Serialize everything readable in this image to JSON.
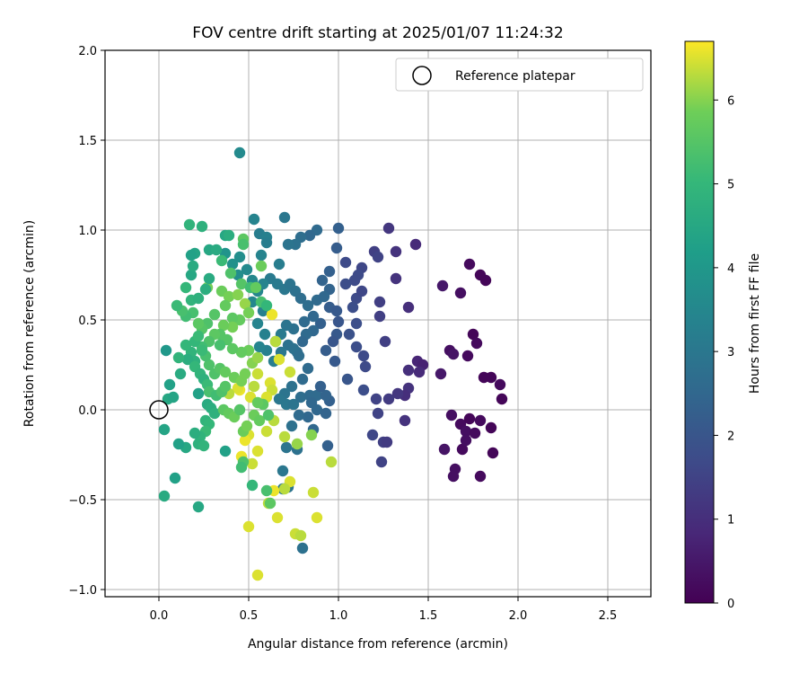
{
  "chart_data": {
    "type": "scatter",
    "title": "FOV centre drift starting at 2025/01/07 11:24:32",
    "xlabel": "Angular distance from reference (arcmin)",
    "ylabel": "Rotation from reference (arcmin)",
    "xlim": [
      -0.3,
      2.74
    ],
    "ylim": [
      -1.04,
      2.0
    ],
    "xticks": [
      0.0,
      0.5,
      1.0,
      1.5,
      2.0,
      2.5
    ],
    "xtick_labels": [
      "0.0",
      "0.5",
      "1.0",
      "1.5",
      "2.0",
      "2.5"
    ],
    "yticks": [
      -1.0,
      -0.5,
      0.0,
      0.5,
      1.0,
      1.5,
      2.0
    ],
    "ytick_labels": [
      "−1.0",
      "−0.5",
      "0.0",
      "0.5",
      "1.0",
      "1.5",
      "2.0"
    ],
    "grid": true,
    "legend": {
      "position": "top-right",
      "entries": [
        "Reference platepar"
      ]
    },
    "reference_point": {
      "x": 0.0,
      "y": 0.0
    },
    "colorbar": {
      "label": "Hours from first FF file",
      "min": 0,
      "max": 6.7,
      "ticks": [
        0,
        1,
        2,
        3,
        4,
        5,
        6
      ],
      "tick_labels": [
        "0",
        "1",
        "2",
        "3",
        "4",
        "5",
        "6"
      ],
      "colormap": "viridis"
    },
    "points": [
      [
        1.82,
        0.72,
        0.1
      ],
      [
        1.79,
        0.75,
        0.1
      ],
      [
        1.73,
        0.81,
        0.2
      ],
      [
        1.68,
        0.65,
        0.3
      ],
      [
        1.58,
        0.69,
        0.5
      ],
      [
        1.75,
        0.42,
        0.1
      ],
      [
        1.77,
        0.37,
        0.2
      ],
      [
        1.72,
        0.3,
        0.2
      ],
      [
        1.62,
        0.33,
        0.3
      ],
      [
        1.64,
        0.31,
        0.4
      ],
      [
        1.81,
        0.18,
        0.1
      ],
      [
        1.85,
        0.18,
        0.1
      ],
      [
        1.9,
        0.14,
        0.2
      ],
      [
        1.91,
        0.06,
        0.1
      ],
      [
        1.57,
        0.2,
        0.5
      ],
      [
        1.63,
        -0.03,
        0.3
      ],
      [
        1.68,
        -0.08,
        0.2
      ],
      [
        1.71,
        -0.12,
        0.3
      ],
      [
        1.73,
        -0.05,
        0.1
      ],
      [
        1.76,
        -0.13,
        0.2
      ],
      [
        1.79,
        -0.06,
        0.2
      ],
      [
        1.85,
        -0.1,
        0.1
      ],
      [
        1.86,
        -0.24,
        0.1
      ],
      [
        1.69,
        -0.22,
        0.2
      ],
      [
        1.59,
        -0.22,
        0.4
      ],
      [
        1.71,
        -0.17,
        0.3
      ],
      [
        1.65,
        -0.33,
        0.3
      ],
      [
        1.64,
        -0.37,
        0.3
      ],
      [
        1.79,
        -0.37,
        0.2
      ],
      [
        1.44,
        0.27,
        0.8
      ],
      [
        1.47,
        0.25,
        0.7
      ],
      [
        1.45,
        0.21,
        0.9
      ],
      [
        1.39,
        0.22,
        1.0
      ],
      [
        1.39,
        0.12,
        1.1
      ],
      [
        1.37,
        0.08,
        1.0
      ],
      [
        1.33,
        0.09,
        1.2
      ],
      [
        1.28,
        0.06,
        1.3
      ],
      [
        1.37,
        -0.06,
        1.1
      ],
      [
        1.43,
        0.92,
        0.9
      ],
      [
        1.28,
        1.01,
        1.2
      ],
      [
        1.32,
        0.88,
        1.1
      ],
      [
        1.32,
        0.73,
        1.1
      ],
      [
        1.39,
        0.57,
        1.0
      ],
      [
        1.23,
        0.6,
        1.4
      ],
      [
        1.23,
        0.52,
        1.4
      ],
      [
        1.26,
        0.38,
        1.4
      ],
      [
        1.2,
        0.88,
        1.4
      ],
      [
        1.22,
        0.85,
        1.5
      ],
      [
        1.13,
        0.79,
        1.6
      ],
      [
        1.11,
        0.75,
        1.7
      ],
      [
        1.09,
        0.72,
        1.7
      ],
      [
        1.04,
        0.7,
        1.8
      ],
      [
        1.04,
        0.82,
        1.7
      ],
      [
        1.1,
        0.62,
        1.7
      ],
      [
        1.13,
        0.66,
        1.6
      ],
      [
        1.08,
        0.57,
        1.8
      ],
      [
        1.1,
        0.48,
        1.8
      ],
      [
        1.06,
        0.42,
        1.9
      ],
      [
        1.1,
        0.35,
        1.8
      ],
      [
        1.14,
        0.3,
        1.7
      ],
      [
        1.15,
        0.24,
        1.7
      ],
      [
        1.14,
        0.11,
        1.8
      ],
      [
        1.05,
        0.17,
        2.0
      ],
      [
        1.21,
        0.06,
        1.5
      ],
      [
        1.22,
        -0.02,
        1.5
      ],
      [
        1.25,
        -0.18,
        1.4
      ],
      [
        1.27,
        -0.18,
        1.3
      ],
      [
        1.19,
        -0.14,
        1.6
      ],
      [
        1.24,
        -0.29,
        1.5
      ],
      [
        1.0,
        1.01,
        2.3
      ],
      [
        0.99,
        0.9,
        2.2
      ],
      [
        0.95,
        0.77,
        2.3
      ],
      [
        0.91,
        0.72,
        2.4
      ],
      [
        0.95,
        0.67,
        2.4
      ],
      [
        0.95,
        0.57,
        2.2
      ],
      [
        0.99,
        0.55,
        2.1
      ],
      [
        1.0,
        0.49,
        2.0
      ],
      [
        0.99,
        0.42,
        2.1
      ],
      [
        0.97,
        0.38,
        2.0
      ],
      [
        0.93,
        0.33,
        2.2
      ],
      [
        0.98,
        0.27,
        2.1
      ],
      [
        0.9,
        0.48,
        2.3
      ],
      [
        0.86,
        0.44,
        2.5
      ],
      [
        0.82,
        0.42,
        2.6
      ],
      [
        0.8,
        0.38,
        2.5
      ],
      [
        0.77,
        0.32,
        2.7
      ],
      [
        0.88,
        1.0,
        2.6
      ],
      [
        0.84,
        0.97,
        2.5
      ],
      [
        0.79,
        0.96,
        2.7
      ],
      [
        0.76,
        0.92,
        2.8
      ],
      [
        0.72,
        0.92,
        2.9
      ],
      [
        0.7,
        1.07,
        3.0
      ],
      [
        0.56,
        0.98,
        3.2
      ],
      [
        0.53,
        1.06,
        3.4
      ],
      [
        0.6,
        0.96,
        3.3
      ],
      [
        0.6,
        0.93,
        3.2
      ],
      [
        0.45,
        1.43,
        3.6
      ],
      [
        0.57,
        0.86,
        3.4
      ],
      [
        0.67,
        0.81,
        3.2
      ],
      [
        0.62,
        0.73,
        3.1
      ],
      [
        0.66,
        0.7,
        3.1
      ],
      [
        0.7,
        0.67,
        3.0
      ],
      [
        0.73,
        0.7,
        2.9
      ],
      [
        0.76,
        0.66,
        2.8
      ],
      [
        0.79,
        0.62,
        2.7
      ],
      [
        0.83,
        0.58,
        2.7
      ],
      [
        0.88,
        0.61,
        2.6
      ],
      [
        0.92,
        0.63,
        2.5
      ],
      [
        0.86,
        0.52,
        2.5
      ],
      [
        0.81,
        0.49,
        2.6
      ],
      [
        0.75,
        0.45,
        2.8
      ],
      [
        0.71,
        0.47,
        2.9
      ],
      [
        0.68,
        0.42,
        3.1
      ],
      [
        0.65,
        0.38,
        3.0
      ],
      [
        0.72,
        0.36,
        2.8
      ],
      [
        0.75,
        0.34,
        2.8
      ],
      [
        0.78,
        0.3,
        2.7
      ],
      [
        0.68,
        0.32,
        3.0
      ],
      [
        0.64,
        0.27,
        3.2
      ],
      [
        0.6,
        0.33,
        3.3
      ],
      [
        0.56,
        0.35,
        3.4
      ],
      [
        0.59,
        0.42,
        3.3
      ],
      [
        0.55,
        0.48,
        3.4
      ],
      [
        0.58,
        0.55,
        3.3
      ],
      [
        0.52,
        0.6,
        3.5
      ],
      [
        0.55,
        0.66,
        3.5
      ],
      [
        0.58,
        0.7,
        3.4
      ],
      [
        0.52,
        0.72,
        3.5
      ],
      [
        0.49,
        0.78,
        3.6
      ],
      [
        0.44,
        0.75,
        3.7
      ],
      [
        0.41,
        0.81,
        3.8
      ],
      [
        0.37,
        0.87,
        3.9
      ],
      [
        0.45,
        0.85,
        3.7
      ],
      [
        0.83,
        0.23,
        2.6
      ],
      [
        0.8,
        0.17,
        2.6
      ],
      [
        0.74,
        0.13,
        2.8
      ],
      [
        0.7,
        0.09,
        2.9
      ],
      [
        0.67,
        0.06,
        3.0
      ],
      [
        0.71,
        0.03,
        3.0
      ],
      [
        0.75,
        0.03,
        2.9
      ],
      [
        0.79,
        0.07,
        2.7
      ],
      [
        0.84,
        0.08,
        2.6
      ],
      [
        0.88,
        0.08,
        2.6
      ],
      [
        0.85,
        0.04,
        2.5
      ],
      [
        0.88,
        0.0,
        2.5
      ],
      [
        0.83,
        -0.04,
        2.5
      ],
      [
        0.78,
        -0.03,
        2.6
      ],
      [
        0.74,
        -0.09,
        2.8
      ],
      [
        0.71,
        -0.21,
        2.9
      ],
      [
        0.77,
        -0.22,
        2.8
      ],
      [
        0.86,
        -0.11,
        2.5
      ],
      [
        0.93,
        -0.02,
        2.4
      ],
      [
        0.95,
        0.05,
        2.3
      ],
      [
        0.93,
        0.08,
        2.4
      ],
      [
        0.9,
        0.13,
        2.3
      ],
      [
        0.69,
        -0.34,
        3.0
      ],
      [
        0.69,
        -0.44,
        3.0
      ],
      [
        0.72,
        -0.43,
        2.9
      ],
      [
        0.8,
        -0.77,
        2.8
      ],
      [
        0.94,
        -0.2,
        2.3
      ],
      [
        0.73,
        0.21,
        6.4
      ],
      [
        0.67,
        0.28,
        6.5
      ],
      [
        0.65,
        0.38,
        6.3
      ],
      [
        0.63,
        0.53,
        6.6
      ],
      [
        0.62,
        0.15,
        6.5
      ],
      [
        0.63,
        0.11,
        6.4
      ],
      [
        0.6,
        0.07,
        6.5
      ],
      [
        0.55,
        0.2,
        6.4
      ],
      [
        0.53,
        0.13,
        6.3
      ],
      [
        0.51,
        0.07,
        6.5
      ],
      [
        0.45,
        0.11,
        6.6
      ],
      [
        0.44,
        0.12,
        6.5
      ],
      [
        0.39,
        0.09,
        6.3
      ],
      [
        0.5,
        -0.14,
        6.5
      ],
      [
        0.55,
        -0.23,
        6.5
      ],
      [
        0.48,
        -0.17,
        6.6
      ],
      [
        0.52,
        -0.3,
        6.4
      ],
      [
        0.46,
        -0.26,
        6.6
      ],
      [
        0.6,
        -0.12,
        6.4
      ],
      [
        0.64,
        -0.06,
        6.3
      ],
      [
        0.7,
        -0.15,
        6.3
      ],
      [
        0.77,
        -0.19,
        6.1
      ],
      [
        0.85,
        -0.14,
        6.0
      ],
      [
        0.73,
        -0.4,
        6.5
      ],
      [
        0.64,
        -0.45,
        6.6
      ],
      [
        0.66,
        -0.6,
        6.5
      ],
      [
        0.61,
        -0.52,
        6.3
      ],
      [
        0.86,
        -0.46,
        6.4
      ],
      [
        0.88,
        -0.6,
        6.5
      ],
      [
        0.76,
        -0.69,
        6.4
      ],
      [
        0.79,
        -0.7,
        6.3
      ],
      [
        0.5,
        -0.65,
        6.5
      ],
      [
        0.55,
        -0.92,
        6.5
      ],
      [
        0.96,
        -0.29,
        6.3
      ],
      [
        0.7,
        -0.44,
        6.3
      ],
      [
        0.27,
        0.68,
        5.9
      ],
      [
        0.35,
        0.66,
        5.8
      ],
      [
        0.39,
        0.63,
        5.9
      ],
      [
        0.37,
        0.58,
        5.7
      ],
      [
        0.31,
        0.53,
        5.5
      ],
      [
        0.27,
        0.48,
        5.4
      ],
      [
        0.24,
        0.45,
        5.5
      ],
      [
        0.22,
        0.48,
        5.6
      ],
      [
        0.19,
        0.54,
        5.3
      ],
      [
        0.15,
        0.52,
        5.2
      ],
      [
        0.13,
        0.55,
        5.3
      ],
      [
        0.1,
        0.58,
        5.1
      ],
      [
        0.15,
        0.68,
        5.0
      ],
      [
        0.18,
        0.61,
        4.9
      ],
      [
        0.22,
        0.62,
        4.8
      ],
      [
        0.26,
        0.67,
        4.7
      ],
      [
        0.28,
        0.73,
        4.6
      ],
      [
        0.18,
        0.75,
        4.5
      ],
      [
        0.19,
        0.8,
        4.6
      ],
      [
        0.2,
        0.87,
        4.4
      ],
      [
        0.18,
        0.86,
        4.3
      ],
      [
        0.17,
        1.03,
        4.9
      ],
      [
        0.24,
        1.02,
        4.8
      ],
      [
        0.28,
        0.89,
        4.5
      ],
      [
        0.32,
        0.89,
        4.6
      ],
      [
        0.37,
        0.97,
        4.5
      ],
      [
        0.39,
        0.97,
        4.7
      ],
      [
        0.47,
        0.95,
        5.6
      ],
      [
        0.47,
        0.92,
        5.3
      ],
      [
        0.35,
        0.83,
        5.1
      ],
      [
        0.4,
        0.76,
        5.4
      ],
      [
        0.46,
        0.7,
        5.5
      ],
      [
        0.51,
        0.68,
        5.2
      ],
      [
        0.54,
        0.68,
        5.7
      ],
      [
        0.57,
        0.8,
        5.8
      ],
      [
        0.44,
        0.64,
        6.0
      ],
      [
        0.48,
        0.59,
        6.1
      ],
      [
        0.5,
        0.54,
        5.9
      ],
      [
        0.45,
        0.5,
        5.7
      ],
      [
        0.41,
        0.51,
        5.6
      ],
      [
        0.41,
        0.46,
        5.9
      ],
      [
        0.36,
        0.47,
        5.8
      ],
      [
        0.34,
        0.42,
        5.5
      ],
      [
        0.31,
        0.42,
        5.6
      ],
      [
        0.28,
        0.38,
        5.4
      ],
      [
        0.24,
        0.35,
        5.2
      ],
      [
        0.2,
        0.38,
        5.0
      ],
      [
        0.22,
        0.41,
        5.1
      ],
      [
        0.18,
        0.32,
        4.9
      ],
      [
        0.2,
        0.27,
        4.8
      ],
      [
        0.16,
        0.28,
        4.7
      ],
      [
        0.2,
        0.24,
        5.0
      ],
      [
        0.23,
        0.2,
        4.9
      ],
      [
        0.25,
        0.17,
        4.8
      ],
      [
        0.27,
        0.14,
        5.1
      ],
      [
        0.28,
        0.1,
        5.3
      ],
      [
        0.32,
        0.08,
        5.2
      ],
      [
        0.35,
        0.1,
        5.4
      ],
      [
        0.37,
        0.13,
        5.5
      ],
      [
        0.31,
        0.2,
        5.4
      ],
      [
        0.34,
        0.23,
        5.5
      ],
      [
        0.37,
        0.21,
        5.7
      ],
      [
        0.42,
        0.18,
        5.8
      ],
      [
        0.46,
        0.16,
        5.9
      ],
      [
        0.48,
        0.2,
        5.9
      ],
      [
        0.52,
        0.26,
        6.0
      ],
      [
        0.55,
        0.29,
        6.1
      ],
      [
        0.5,
        0.33,
        5.8
      ],
      [
        0.46,
        0.32,
        5.7
      ],
      [
        0.41,
        0.34,
        5.6
      ],
      [
        0.38,
        0.39,
        5.5
      ],
      [
        0.34,
        0.36,
        5.3
      ],
      [
        0.28,
        0.25,
        5.4
      ],
      [
        0.26,
        0.3,
        5.3
      ],
      [
        0.24,
        0.33,
        5.1
      ],
      [
        0.15,
        0.36,
        5.0
      ],
      [
        0.11,
        0.29,
        4.9
      ],
      [
        0.12,
        0.2,
        4.6
      ],
      [
        0.06,
        0.14,
        4.3
      ],
      [
        0.05,
        0.06,
        4.5
      ],
      [
        0.08,
        0.07,
        4.4
      ],
      [
        0.04,
        0.33,
        4.0
      ],
      [
        0.22,
        0.09,
        4.3
      ],
      [
        0.27,
        0.03,
        4.6
      ],
      [
        0.29,
        0.01,
        4.7
      ],
      [
        0.31,
        -0.02,
        4.8
      ],
      [
        0.26,
        -0.06,
        4.9
      ],
      [
        0.28,
        -0.08,
        5.0
      ],
      [
        0.26,
        -0.12,
        5.1
      ],
      [
        0.23,
        -0.15,
        4.9
      ],
      [
        0.2,
        -0.13,
        4.7
      ],
      [
        0.22,
        -0.19,
        4.8
      ],
      [
        0.25,
        -0.2,
        4.9
      ],
      [
        0.15,
        -0.21,
        4.5
      ],
      [
        0.11,
        -0.19,
        4.3
      ],
      [
        0.03,
        -0.11,
        4.4
      ],
      [
        0.37,
        -0.23,
        4.3
      ],
      [
        0.36,
        0.0,
        5.6
      ],
      [
        0.39,
        -0.02,
        5.7
      ],
      [
        0.42,
        -0.04,
        5.8
      ],
      [
        0.45,
        0.0,
        5.5
      ],
      [
        0.47,
        -0.12,
        5.8
      ],
      [
        0.49,
        -0.09,
        5.9
      ],
      [
        0.53,
        -0.03,
        5.8
      ],
      [
        0.56,
        -0.06,
        5.7
      ],
      [
        0.58,
        0.03,
        5.6
      ],
      [
        0.55,
        0.04,
        5.7
      ],
      [
        0.61,
        -0.03,
        5.4
      ],
      [
        0.47,
        -0.29,
        5.4
      ],
      [
        0.46,
        -0.32,
        5.2
      ],
      [
        0.52,
        -0.42,
        5.0
      ],
      [
        0.6,
        -0.45,
        5.3
      ],
      [
        0.62,
        -0.52,
        5.6
      ],
      [
        0.22,
        -0.54,
        4.5
      ],
      [
        0.09,
        -0.38,
        4.3
      ],
      [
        0.03,
        -0.48,
        4.6
      ],
      [
        0.57,
        0.6,
        5.3
      ],
      [
        0.6,
        0.58,
        5.0
      ]
    ]
  }
}
